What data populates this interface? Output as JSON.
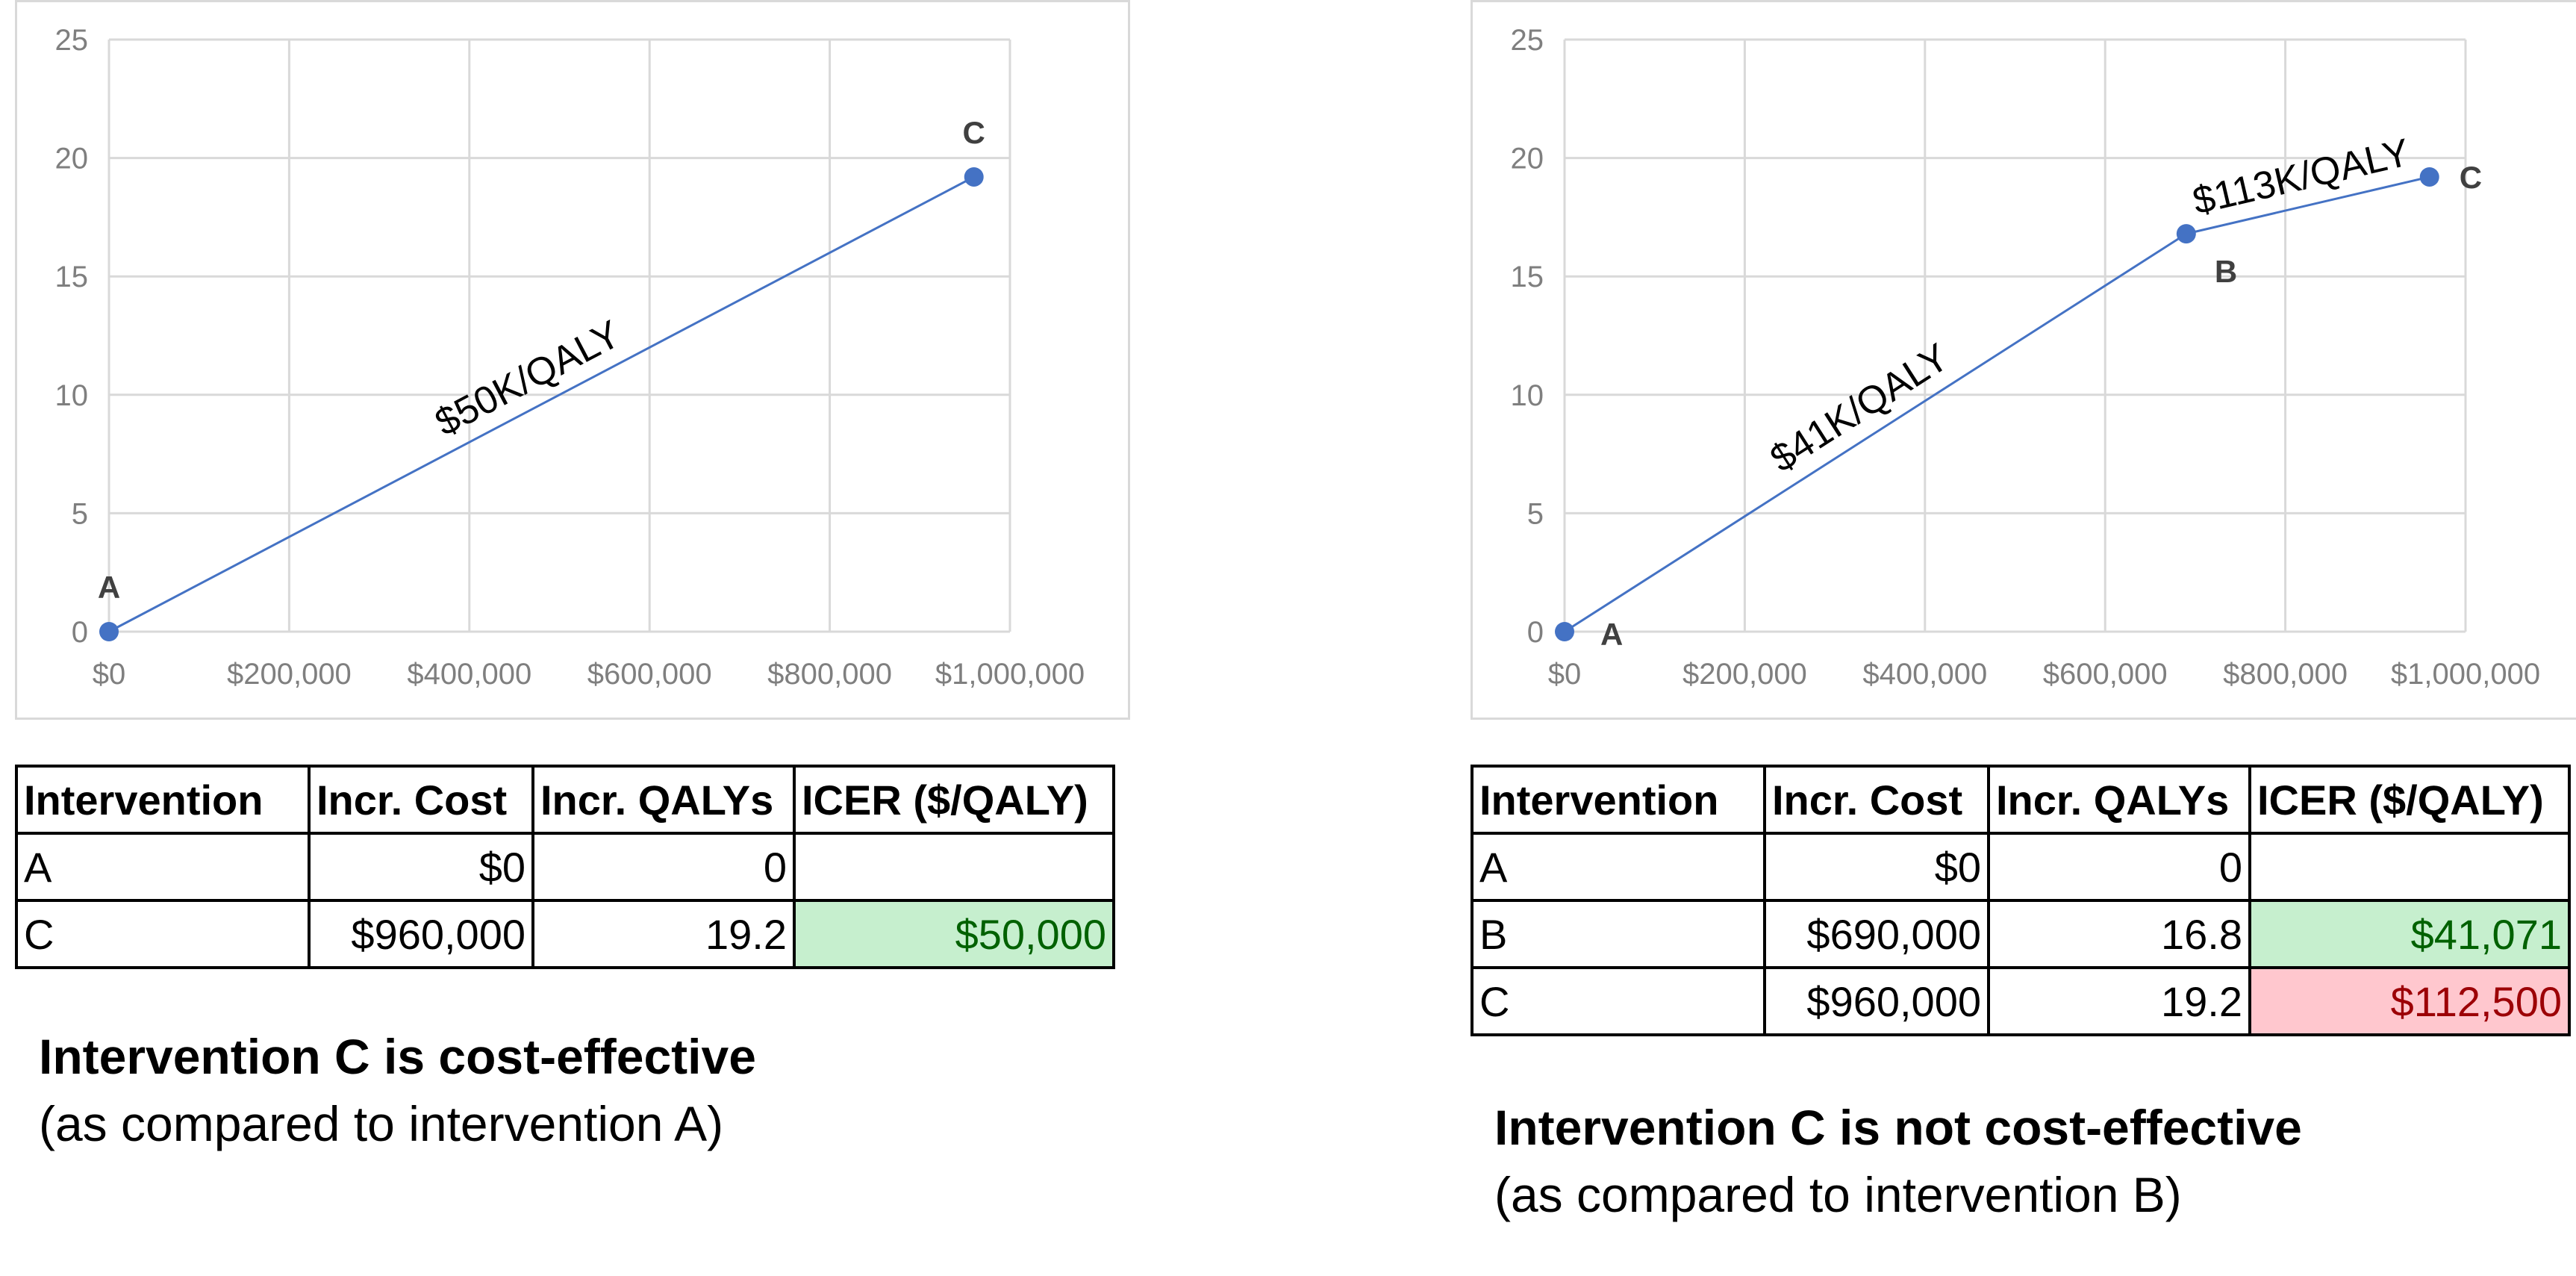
{
  "colors": {
    "point": "#4472c4",
    "line": "#4472c4",
    "grid": "#d9d9d9",
    "good_bg": "#c6efce",
    "good_fg": "#006100",
    "bad_bg": "#ffc7ce",
    "bad_fg": "#9c0006"
  },
  "chart_data": [
    {
      "type": "scatter",
      "xlim": [
        0,
        1000000
      ],
      "ylim": [
        0,
        25
      ],
      "x_ticks": [
        "$0",
        "$200,000",
        "$400,000",
        "$600,000",
        "$800,000",
        "$1,000,000"
      ],
      "y_ticks": [
        "0",
        "5",
        "10",
        "15",
        "20",
        "25"
      ],
      "grid": true,
      "points": [
        {
          "label": "A",
          "x": 0,
          "y": 0,
          "label_pos": "above"
        },
        {
          "label": "C",
          "x": 960000,
          "y": 19.2,
          "label_pos": "above"
        }
      ],
      "segments": [
        {
          "from": 0,
          "to": 1,
          "label": "$50K/QALY"
        }
      ]
    },
    {
      "type": "scatter",
      "xlim": [
        0,
        1000000
      ],
      "ylim": [
        0,
        25
      ],
      "x_ticks": [
        "$0",
        "$200,000",
        "$400,000",
        "$600,000",
        "$800,000",
        "$1,000,000"
      ],
      "y_ticks": [
        "0",
        "5",
        "10",
        "15",
        "20",
        "25"
      ],
      "grid": true,
      "points": [
        {
          "label": "A",
          "x": 0,
          "y": 0,
          "label_pos": "below-right"
        },
        {
          "label": "B",
          "x": 690000,
          "y": 16.8,
          "label_pos": "below-right"
        },
        {
          "label": "C",
          "x": 960000,
          "y": 19.2,
          "label_pos": "right"
        }
      ],
      "segments": [
        {
          "from": 0,
          "to": 1,
          "label": "$41K/QALY"
        },
        {
          "from": 1,
          "to": 2,
          "label": "$113K/QALY"
        }
      ]
    }
  ],
  "left": {
    "table": {
      "headers": [
        "Intervention",
        "Incr. Cost",
        "Incr. QALYs",
        "ICER ($/QALY)"
      ],
      "rows": [
        [
          "A",
          "$0",
          "0",
          ""
        ],
        [
          "C",
          "$960,000",
          "19.2",
          "$50,000"
        ]
      ]
    },
    "verdict_title": "Intervention C is cost-effective",
    "verdict_note": "(as compared to intervention A)"
  },
  "right": {
    "table": {
      "headers": [
        "Intervention",
        "Incr. Cost",
        "Incr. QALYs",
        "ICER ($/QALY)"
      ],
      "rows": [
        [
          "A",
          "$0",
          "0",
          ""
        ],
        [
          "B",
          "$690,000",
          "16.8",
          "$41,071"
        ],
        [
          "C",
          "$960,000",
          "19.2",
          "$112,500"
        ]
      ]
    },
    "verdict_title": "Intervention C is not cost-effective",
    "verdict_note": "(as compared to intervention B)"
  }
}
